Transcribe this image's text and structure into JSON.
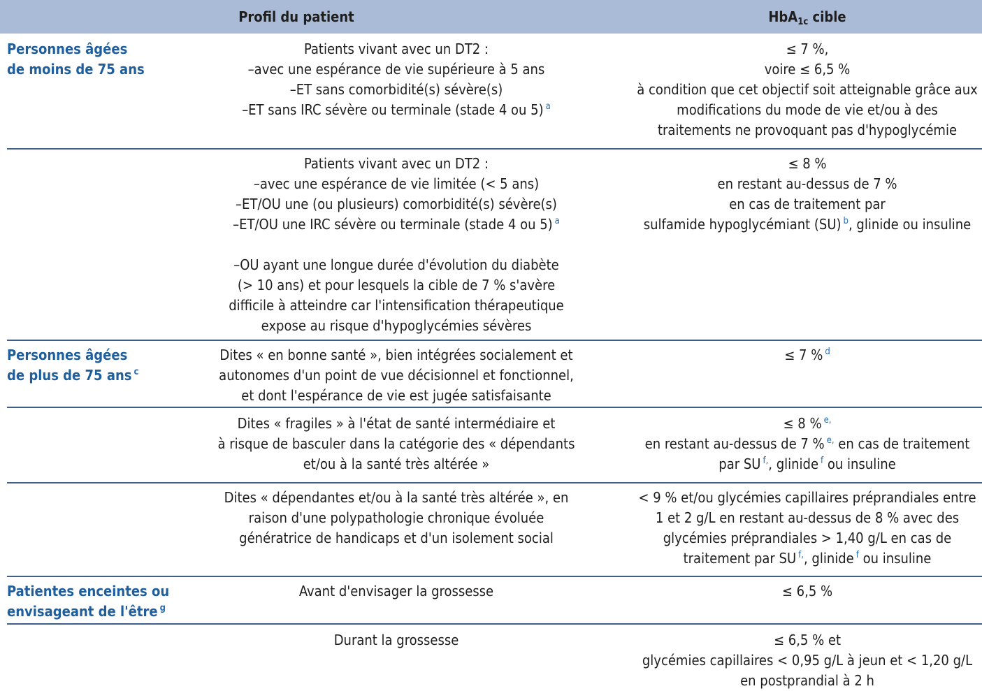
{
  "header": {
    "col_profile": "Profil du patient",
    "col_target_main": "HbA",
    "col_target_sub": "1c",
    "col_target_tail": " cible"
  },
  "rows": [
    {
      "category": [
        "Personnes âgées",
        "de moins de 75 ans"
      ],
      "profile": [
        "Patients vivant avec un DT2 :",
        "–avec une espérance de vie supérieure à 5 ans",
        "–ET sans comorbidité(s) sévère(s)",
        "–ET sans IRC sévère ou terminale (stade 4 ou 5)"
      ],
      "profile_note": "a",
      "target": [
        "≤ 7 %,",
        "voire ≤ 6,5 %",
        "à condition que cet objectif soit atteignable grâce aux",
        "modifications du mode de vie et/ou à des",
        "traitements ne provoquant pas d'hypoglycémie"
      ]
    },
    {
      "profile": [
        "Patients vivant avec un DT2 :",
        "–avec une espérance de vie limitée (< 5 ans)",
        "–ET/OU une (ou plusieurs) comorbidité(s) sévère(s)",
        "–ET/OU une IRC sévère ou terminale (stade 4 ou 5)",
        "–OU ayant une longue durée d'évolution du diabète",
        "(> 10 ans) et pour lesquels la cible de 7 % s'avère",
        "difficile à atteindre car l'intensification thérapeutique",
        "expose au risque d'hypoglycémies sévères"
      ],
      "profile_note": "a",
      "target": [
        "≤ 8 %",
        "en restant au-dessus de 7 %",
        "en cas de traitement par",
        "sulfamide hypoglycémiant (SU)",
        ", glinide ou insuline"
      ],
      "target_note": "b"
    },
    {
      "category": [
        "Personnes âgées",
        "de plus de 75 ans"
      ],
      "category_note": "c",
      "profile": [
        "Dites « en bonne santé », bien intégrées socialement et",
        "autonomes d'un point de vue décisionnel et fonctionnel,",
        "et dont l'espérance de vie est jugée satisfaisante"
      ],
      "target": [
        "≤ 7 %"
      ],
      "target_note": "d"
    },
    {
      "profile": [
        "Dites « fragiles » à l'état de santé intermédiaire et",
        "à risque de basculer dans la catégorie des « dépendants",
        "et/ou à la santé très altérée »"
      ],
      "target": [
        "≤ 8 %",
        "en restant au-dessus de 7 %",
        " en cas de traitement",
        "par SU",
        ", glinide",
        " ou insuline"
      ],
      "target_notes": [
        "e,",
        "e,",
        "f,",
        "f"
      ]
    },
    {
      "profile": [
        "Dites « dépendantes et/ou à la santé très altérée », en",
        "raison d'une polypathologie chronique évoluée",
        "génératrice de handicaps et d'un isolement social"
      ],
      "target": [
        "< 9 % et/ou glycémies capillaires préprandiales entre",
        "1 et 2 g/L en restant au-dessus de 8 % avec des",
        "glycémies préprandiales > 1,40 g/L en cas de",
        "traitement par SU",
        ", glinide",
        " ou insuline"
      ],
      "target_notes": [
        "f,",
        "f"
      ]
    },
    {
      "category": [
        "Patientes enceintes ou",
        "envisageant de l'être"
      ],
      "category_note": "g",
      "profile": [
        "Avant d'envisager la grossesse"
      ],
      "target": [
        "≤ 6,5 %"
      ]
    },
    {
      "profile": [
        "Durant la grossesse"
      ],
      "target": [
        "≤ 6,5 % et",
        "glycémies capillaires < 0,95 g/L à jeun et < 1,20 g/L",
        "en postprandial à 2 h"
      ]
    }
  ]
}
